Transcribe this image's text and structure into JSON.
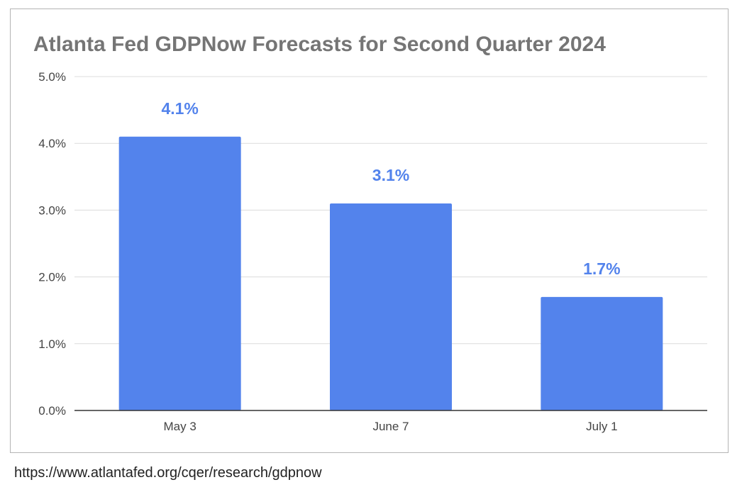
{
  "chart_data": {
    "type": "bar",
    "title": "Atlanta Fed GDPNow Forecasts for Second Quarter 2024",
    "categories": [
      "May 3",
      "June 7",
      "July 1"
    ],
    "values": [
      4.1,
      3.1,
      1.7
    ],
    "data_labels": [
      "4.1%",
      "3.1%",
      "1.7%"
    ],
    "ylim": [
      0,
      5
    ],
    "yticks": [
      0,
      1,
      2,
      3,
      4,
      5
    ],
    "ytick_labels": [
      "0.0%",
      "1.0%",
      "2.0%",
      "3.0%",
      "4.0%",
      "5.0%"
    ],
    "xlabel": "",
    "ylabel": "",
    "grid": true,
    "legend": "none",
    "bar_color": "#5383ec",
    "label_color": "#5383ec"
  },
  "source": {
    "url": "https://www.atlantafed.org/cqer/research/gdpnow"
  }
}
